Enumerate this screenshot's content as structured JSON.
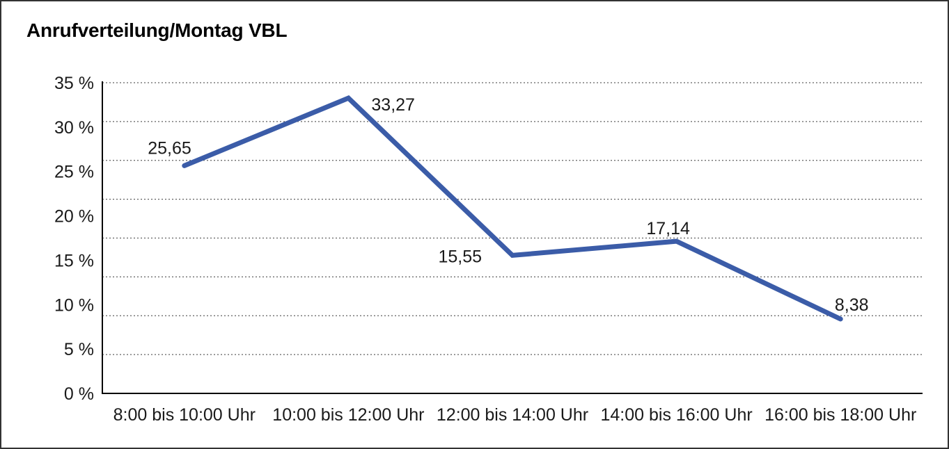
{
  "chart": {
    "title": "Anrufverteilung/Montag VBL"
  },
  "chart_data": {
    "type": "line",
    "title": "Anrufverteilung/Montag VBL",
    "categories": [
      "8:00 bis 10:00 Uhr",
      "10:00 bis 12:00 Uhr",
      "12:00 bis 14:00 Uhr",
      "14:00 bis 16:00 Uhr",
      "16:00 bis 18:00 Uhr"
    ],
    "values": [
      25.65,
      33.27,
      15.55,
      17.14,
      8.38
    ],
    "point_labels": [
      "25,65",
      "33,27",
      "15,55",
      "17,14",
      "8,38"
    ],
    "xlabel": "",
    "ylabel": "",
    "ylim": [
      0,
      35
    ],
    "y_tick_values": [
      35,
      30,
      25,
      20,
      15,
      10,
      5,
      0
    ],
    "y_ticks": [
      "35 %",
      "30 %",
      "25 %",
      "20 %",
      "15 %",
      "10 %",
      "5 %",
      "0 %"
    ],
    "grid": "horizontal-dotted",
    "gridline_divisions": 8,
    "legend": "none",
    "colors": {
      "line": "#3B5CA8",
      "axis": "#000000",
      "grid": "#606060",
      "text": "#1a1a1a",
      "border": "#333333",
      "background": "#ffffff"
    }
  }
}
